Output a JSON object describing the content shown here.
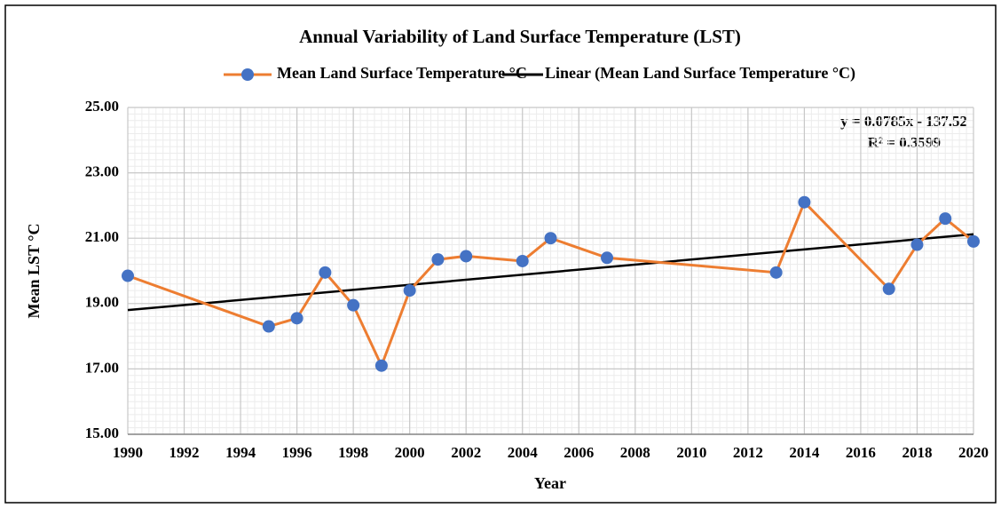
{
  "chart_data": {
    "type": "line",
    "title": "Annual Variability of Land Surface Temperature (LST)",
    "x_label": "Year",
    "y_label": "Mean LST °C",
    "x": [
      1990,
      1995,
      1996,
      1997,
      1998,
      1999,
      2000,
      2001,
      2002,
      2004,
      2005,
      2007,
      2013,
      2014,
      2017,
      2018,
      2019,
      2020
    ],
    "series": [
      {
        "name": "Mean Land Surface Temperature °C",
        "color": "#ed7d31",
        "marker_color": "#4472c4",
        "values": [
          19.85,
          18.3,
          18.55,
          19.95,
          18.95,
          17.1,
          19.4,
          20.35,
          20.45,
          20.3,
          21.0,
          20.4,
          19.95,
          22.1,
          19.45,
          20.8,
          21.6,
          20.9
        ]
      },
      {
        "name": "Linear (Mean Land Surface Temperature °C)",
        "color": "#000000",
        "x": [
          1990,
          2020
        ],
        "values": [
          18.8,
          21.12
        ]
      }
    ],
    "annotations": [
      "y = 0.0785x - 137.52",
      "R² = 0.3599"
    ],
    "xlim": [
      1990,
      2020
    ],
    "xticks": [
      1990,
      1992,
      1994,
      1996,
      1998,
      2000,
      2002,
      2004,
      2006,
      2008,
      2010,
      2012,
      2014,
      2016,
      2018,
      2020
    ],
    "ylim": [
      15,
      25
    ],
    "yticks": [
      {
        "value": 15,
        "label": "15.00"
      },
      {
        "value": 17,
        "label": "17.00"
      },
      {
        "value": 19,
        "label": "19.00"
      },
      {
        "value": 21,
        "label": "21.00"
      },
      {
        "value": 23,
        "label": "23.00"
      },
      {
        "value": 25,
        "label": "25.00"
      }
    ],
    "grid": true,
    "minor_grid": true,
    "legend": "top"
  }
}
